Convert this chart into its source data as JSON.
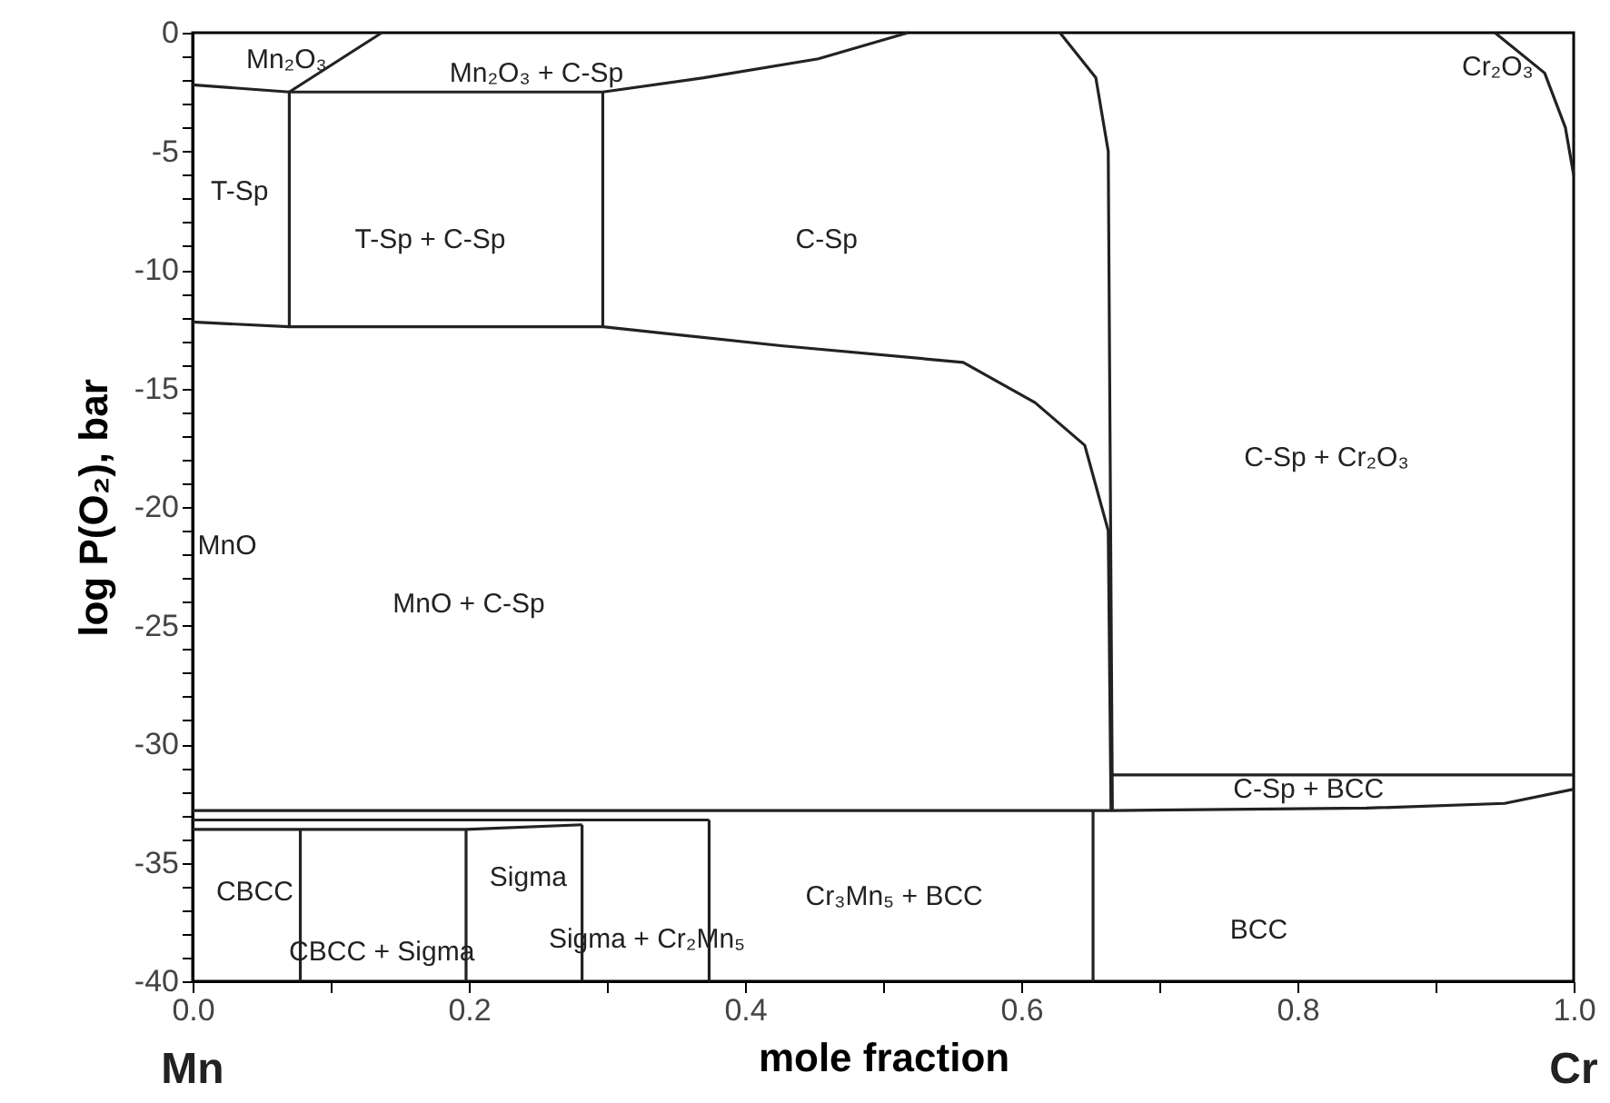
{
  "chart_data": {
    "type": "line",
    "xlabel": "mole fraction",
    "ylabel": "log P(O₂), bar",
    "xlim": [
      0,
      1
    ],
    "ylim": [
      -40,
      0
    ],
    "xticks": [
      {
        "value": 0,
        "label": "0.0"
      },
      {
        "value": 0.1,
        "label": null
      },
      {
        "value": 0.2,
        "label": "0.2"
      },
      {
        "value": 0.3,
        "label": null
      },
      {
        "value": 0.4,
        "label": "0.4"
      },
      {
        "value": 0.5,
        "label": null
      },
      {
        "value": 0.6,
        "label": "0.6"
      },
      {
        "value": 0.7,
        "label": null
      },
      {
        "value": 0.8,
        "label": "0.8"
      },
      {
        "value": 0.9,
        "label": null
      },
      {
        "value": 1,
        "label": "1.0"
      }
    ],
    "yticks": [
      0,
      {
        "value": -1,
        "label": null
      },
      {
        "value": -2,
        "label": null
      },
      {
        "value": -3,
        "label": null
      },
      {
        "value": -4,
        "label": null
      },
      -5,
      {
        "value": -6,
        "label": null
      },
      {
        "value": -7,
        "label": null
      },
      {
        "value": -8,
        "label": null
      },
      {
        "value": -9,
        "label": null
      },
      -10,
      {
        "value": -11,
        "label": null
      },
      {
        "value": -12,
        "label": null
      },
      {
        "value": -13,
        "label": null
      },
      {
        "value": -14,
        "label": null
      },
      -15,
      {
        "value": -16,
        "label": null
      },
      {
        "value": -17,
        "label": null
      },
      {
        "value": -18,
        "label": null
      },
      {
        "value": -19,
        "label": null
      },
      -20,
      {
        "value": -21,
        "label": null
      },
      {
        "value": -22,
        "label": null
      },
      {
        "value": -23,
        "label": null
      },
      {
        "value": -24,
        "label": null
      },
      -25,
      {
        "value": -26,
        "label": null
      },
      {
        "value": -27,
        "label": null
      },
      {
        "value": -28,
        "label": null
      },
      {
        "value": -29,
        "label": null
      },
      -30,
      {
        "value": -31,
        "label": null
      },
      {
        "value": -32,
        "label": null
      },
      {
        "value": -33,
        "label": null
      },
      {
        "value": -34,
        "label": null
      },
      -35,
      {
        "value": -36,
        "label": null
      },
      {
        "value": -37,
        "label": null
      },
      {
        "value": -38,
        "label": null
      },
      {
        "value": -39,
        "label": null
      },
      -40
    ],
    "grid": false,
    "series": [
      {
        "color": "#222222",
        "x": [
          0,
          0.07,
          0.297,
          0.37,
          0.453,
          0.518
        ],
        "values": [
          -2.2,
          -2.5,
          -2.5,
          -1.9,
          -1.1,
          0
        ]
      },
      {
        "color": "#222222",
        "x": [
          0.07,
          0.137
        ],
        "values": [
          -2.5,
          0
        ]
      },
      {
        "color": "#222222",
        "x": [
          0.07,
          0.07
        ],
        "values": [
          -2.5,
          -12.4
        ]
      },
      {
        "color": "#222222",
        "x": [
          0.297,
          0.297
        ],
        "values": [
          -2.5,
          -12.4
        ]
      },
      {
        "color": "#222222",
        "x": [
          0,
          0.07,
          0.297,
          0.426,
          0.558,
          0.61,
          0.646,
          0.663,
          0.665
        ],
        "values": [
          -12.2,
          -12.4,
          -12.4,
          -13.2,
          -13.9,
          -15.6,
          -17.4,
          -21,
          -32.8
        ]
      },
      {
        "color": "#222222",
        "x": [
          0.628,
          0.654,
          0.663,
          0.666
        ],
        "values": [
          0,
          -1.9,
          -5,
          -32.8
        ]
      },
      {
        "color": "#222222",
        "x": [
          0.666,
          1
        ],
        "values": [
          -31.3,
          -31.3
        ]
      },
      {
        "color": "#222222",
        "x": [
          0,
          0.666,
          0.85,
          0.95,
          1
        ],
        "values": [
          -32.8,
          -32.8,
          -32.7,
          -32.5,
          -31.9
        ]
      },
      {
        "color": "#222222",
        "x": [
          0,
          0.374
        ],
        "values": [
          -33.2,
          -33.2
        ]
      },
      {
        "color": "#222222",
        "x": [
          0,
          0.198,
          0.282
        ],
        "values": [
          -33.6,
          -33.6,
          -33.4
        ]
      },
      {
        "color": "#222222",
        "x": [
          0.078,
          0.078
        ],
        "values": [
          -33.6,
          -40
        ]
      },
      {
        "color": "#222222",
        "x": [
          0.198,
          0.198
        ],
        "values": [
          -33.6,
          -40
        ]
      },
      {
        "color": "#222222",
        "x": [
          0.282,
          0.282
        ],
        "values": [
          -33.4,
          -40
        ]
      },
      {
        "color": "#222222",
        "x": [
          0.374,
          0.374
        ],
        "values": [
          -33.2,
          -40
        ]
      },
      {
        "color": "#222222",
        "x": [
          0.652,
          0.652
        ],
        "values": [
          -32.8,
          -40
        ]
      },
      {
        "color": "#222222",
        "x": [
          0.943,
          0.979,
          0.994,
          1
        ],
        "values": [
          0,
          -1.7,
          -4,
          -6
        ]
      }
    ],
    "annotations": [
      "Mn₂O₃",
      "Mn₂O₃ + C-Sp",
      "T-Sp",
      "T-Sp + C-Sp",
      "C-Sp",
      "Cr₂O₃",
      "C-Sp + Cr₂O₃",
      "MnO",
      "MnO + C-Sp",
      "C-Sp + BCC",
      "CBCC",
      "Sigma",
      "CBCC + Sigma",
      "Sigma + Cr₂Mn₅",
      "Cr₃Mn₅ + BCC",
      "BCC",
      "Mn",
      "Cr"
    ]
  }
}
